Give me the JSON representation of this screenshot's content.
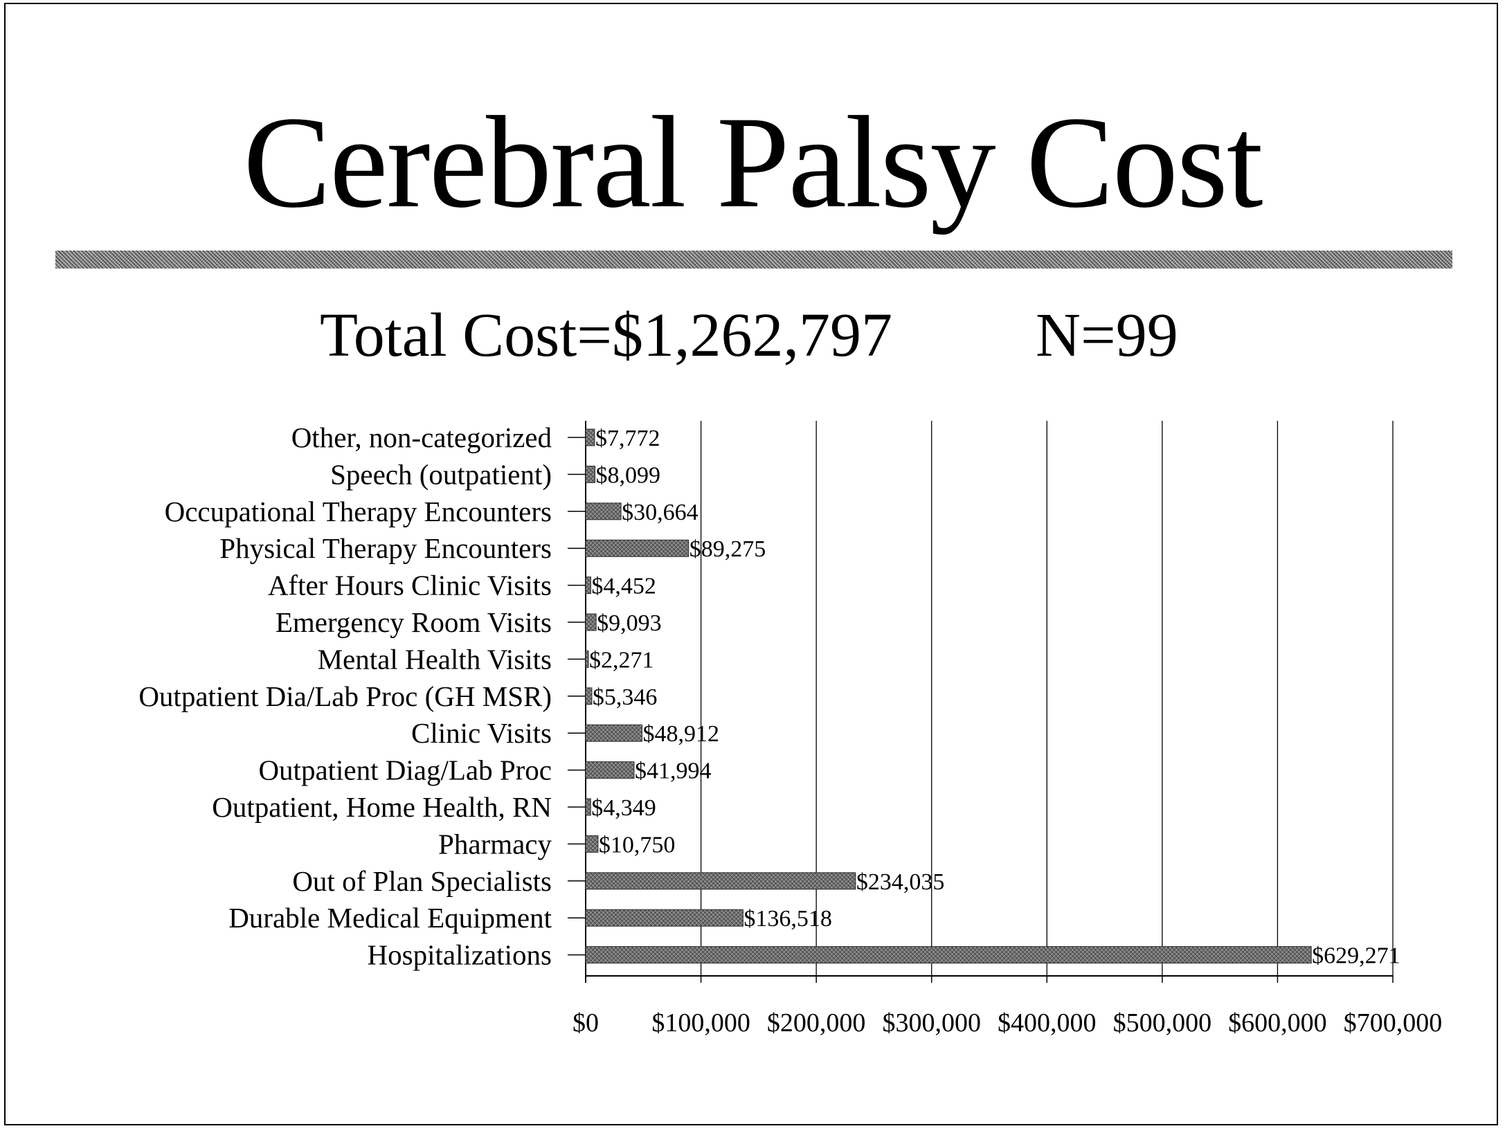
{
  "page": {
    "title": "Cerebral Palsy Cost",
    "total_cost": "Total Cost=$1,262,797",
    "n": "N=99"
  },
  "chart_data": {
    "type": "bar",
    "orientation": "horizontal",
    "title": "Cerebral Palsy Cost",
    "subtitle": "Total Cost=$1,262,797 N=99",
    "xlabel": "",
    "ylabel": "",
    "xlim": [
      0,
      700000
    ],
    "grid": true,
    "bar_color": "#6e6e6e",
    "categories": [
      "Other, non-categorized",
      "Speech (outpatient)",
      "Occupational Therapy Encounters",
      "Physical Therapy Encounters",
      "After Hours Clinic Visits",
      "Emergency Room Visits",
      "Mental Health Visits",
      "Outpatient Dia/Lab Proc (GH MSR)",
      "Clinic Visits",
      "Outpatient Diag/Lab Proc",
      "Outpatient, Home Health, RN",
      "Pharmacy",
      "Out of Plan Specialists",
      "Durable Medical Equipment",
      "Hospitalizations"
    ],
    "values": [
      7772,
      8099,
      30664,
      89275,
      4452,
      9093,
      2271,
      5346,
      48912,
      41994,
      4349,
      10750,
      234035,
      136518,
      629271
    ],
    "value_labels": [
      "$7,772",
      "$8,099",
      "$30,664",
      "$89,275",
      "$4,452",
      "$9,093",
      "$2,271",
      "$5,346",
      "$48,912",
      "$41,994",
      "$4,349",
      "$10,750",
      "$234,035",
      "$136,518",
      "$629,271"
    ],
    "x_ticks": [
      0,
      100000,
      200000,
      300000,
      400000,
      500000,
      600000,
      700000
    ],
    "x_tick_labels": [
      "$0",
      "$100,000",
      "$200,000",
      "$300,000",
      "$400,000",
      "$500,000",
      "$600,000",
      "$700,000"
    ]
  }
}
